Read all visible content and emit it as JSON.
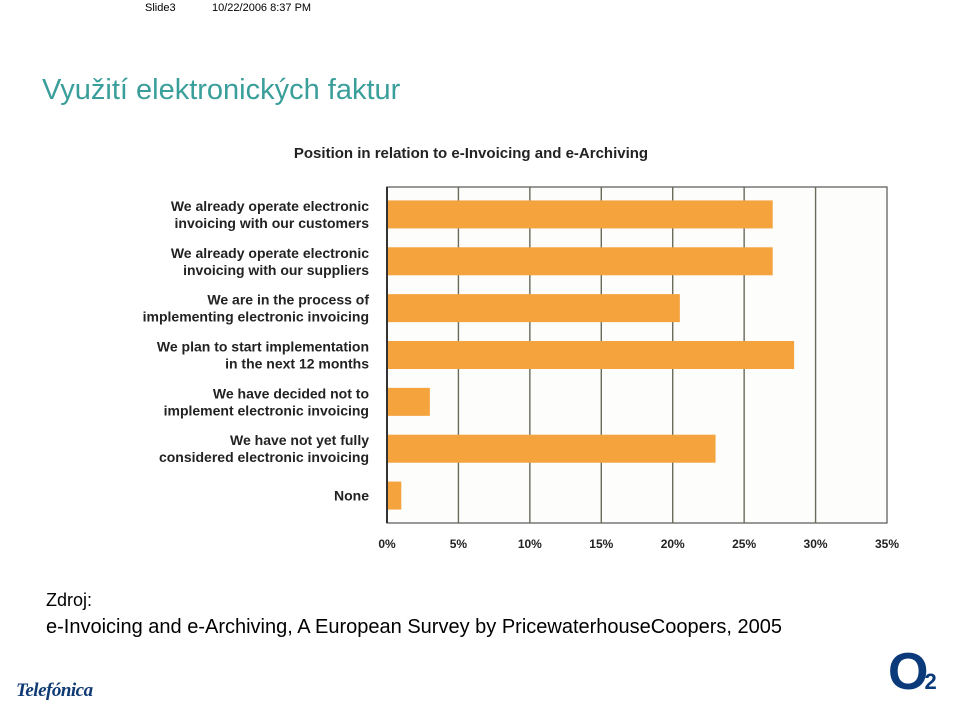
{
  "header": {
    "slide_name": "Slide3",
    "timestamp": "10/22/2006 8:37 PM"
  },
  "title": "Využití elektronických faktur",
  "chart_data": {
    "type": "bar",
    "orientation": "horizontal",
    "title": "Position in relation to e-Invoicing and e-Archiving",
    "categories": [
      [
        "We already operate electronic",
        "invoicing with our customers"
      ],
      [
        "We already operate electronic",
        "invoicing with our suppliers"
      ],
      [
        "We are in the process of",
        "implementing electronic invoicing"
      ],
      [
        "We plan to start implementation",
        "in the next 12 months"
      ],
      [
        "We have decided not to",
        "implement electronic invoicing"
      ],
      [
        "We have not yet fully",
        "considered electronic invoicing"
      ],
      [
        "None"
      ]
    ],
    "values": [
      27,
      27,
      20.5,
      28.5,
      3,
      23,
      1
    ],
    "xlim": [
      0,
      35
    ],
    "xticks": [
      "0%",
      "5%",
      "10%",
      "15%",
      "20%",
      "25%",
      "30%",
      "35%"
    ],
    "grid": true,
    "bar_color": "#f4a33d"
  },
  "source": {
    "label": "Zdroj:",
    "text": "e-Invoicing and e-Archiving, A European Survey by PricewaterhouseCoopers, 2005"
  },
  "logos": {
    "telefonica": "Telefónica",
    "o2": "O",
    "o2_sub": "2"
  }
}
